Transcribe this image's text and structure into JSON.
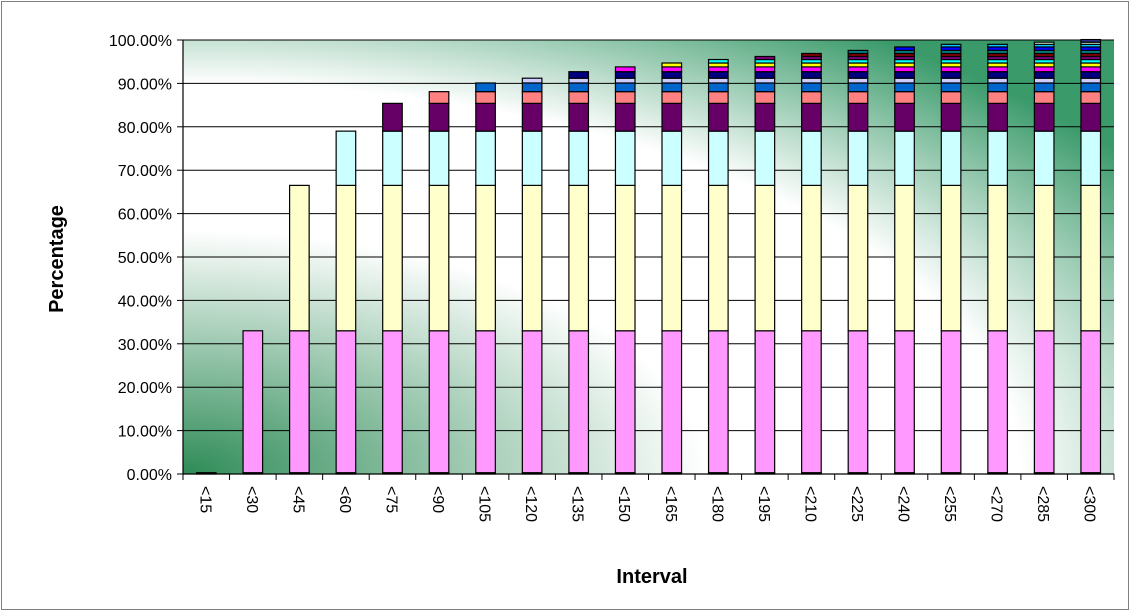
{
  "chart_data": {
    "type": "bar",
    "stacked": true,
    "title": "",
    "xlabel": "Interval",
    "ylabel": "Percentage",
    "ylim": [
      0,
      100
    ],
    "y_ticks": [
      "0.00%",
      "10.00%",
      "20.00%",
      "30.00%",
      "40.00%",
      "50.00%",
      "60.00%",
      "70.00%",
      "80.00%",
      "90.00%",
      "100.00%"
    ],
    "grid": "horizontal",
    "legend": "none",
    "categories": [
      "<15",
      "<30",
      "<45",
      "<60",
      "<75",
      "<90",
      "<105",
      "<120",
      "<135",
      "<150",
      "<165",
      "<180",
      "<195",
      "<210",
      "<225",
      "<240",
      "<255",
      "<270",
      "<285",
      "<300"
    ],
    "series": [
      {
        "color": "#1a1a1a",
        "values": [
          0.3,
          0.3,
          0.3,
          0.3,
          0.3,
          0.3,
          0.3,
          0.3,
          0.3,
          0.3,
          0.3,
          0.3,
          0.3,
          0.3,
          0.3,
          0.3,
          0.3,
          0.3,
          0.3,
          0.3
        ]
      },
      {
        "color": "#ff99ff",
        "values": [
          0,
          32.7,
          32.7,
          32.7,
          32.7,
          32.7,
          32.7,
          32.7,
          32.7,
          32.7,
          32.7,
          32.7,
          32.7,
          32.7,
          32.7,
          32.7,
          32.7,
          32.7,
          32.7,
          32.7
        ]
      },
      {
        "color": "#ffffcc",
        "values": [
          0,
          0,
          33.5,
          33.5,
          33.5,
          33.5,
          33.5,
          33.5,
          33.5,
          33.5,
          33.5,
          33.5,
          33.5,
          33.5,
          33.5,
          33.5,
          33.5,
          33.5,
          33.5,
          33.5
        ]
      },
      {
        "color": "#ccffff",
        "values": [
          0,
          0,
          0,
          12.5,
          12.5,
          12.5,
          12.5,
          12.5,
          12.5,
          12.5,
          12.5,
          12.5,
          12.5,
          12.5,
          12.5,
          12.5,
          12.5,
          12.5,
          12.5,
          12.5
        ]
      },
      {
        "color": "#660066",
        "values": [
          0,
          0,
          0,
          0,
          6.4,
          6.4,
          6.4,
          6.4,
          6.4,
          6.4,
          6.4,
          6.4,
          6.4,
          6.4,
          6.4,
          6.4,
          6.4,
          6.4,
          6.4,
          6.4
        ]
      },
      {
        "color": "#ff8080",
        "values": [
          0,
          0,
          0,
          0,
          0,
          2.7,
          2.7,
          2.7,
          2.7,
          2.7,
          2.7,
          2.7,
          2.7,
          2.7,
          2.7,
          2.7,
          2.7,
          2.7,
          2.7,
          2.7
        ]
      },
      {
        "color": "#0066cc",
        "values": [
          0,
          0,
          0,
          0,
          0,
          0,
          2.0,
          2.0,
          2.0,
          2.0,
          2.0,
          2.0,
          2.0,
          2.0,
          2.0,
          2.0,
          2.0,
          2.0,
          2.0,
          2.0
        ]
      },
      {
        "color": "#ccccff",
        "values": [
          0,
          0,
          0,
          0,
          0,
          0,
          0,
          1.1,
          1.1,
          1.1,
          1.1,
          1.1,
          1.1,
          1.1,
          1.1,
          1.1,
          1.1,
          1.1,
          1.1,
          1.1
        ]
      },
      {
        "color": "#000080",
        "values": [
          0,
          0,
          0,
          0,
          0,
          0,
          0,
          0,
          1.5,
          1.5,
          1.5,
          1.5,
          1.5,
          1.5,
          1.5,
          1.5,
          1.5,
          1.5,
          1.5,
          1.5
        ]
      },
      {
        "color": "#ff00ff",
        "values": [
          0,
          0,
          0,
          0,
          0,
          0,
          0,
          0,
          0,
          1.1,
          1.1,
          1.1,
          1.1,
          1.1,
          1.1,
          1.1,
          1.1,
          1.1,
          1.1,
          1.1
        ]
      },
      {
        "color": "#ffff00",
        "values": [
          0,
          0,
          0,
          0,
          0,
          0,
          0,
          0,
          0,
          0,
          0.9,
          0.9,
          0.9,
          0.9,
          0.9,
          0.9,
          0.9,
          0.9,
          0.9,
          0.9
        ]
      },
      {
        "color": "#00ffff",
        "values": [
          0,
          0,
          0,
          0,
          0,
          0,
          0,
          0,
          0,
          0,
          0,
          0.8,
          0.8,
          0.8,
          0.8,
          0.8,
          0.8,
          0.8,
          0.8,
          0.8
        ]
      },
      {
        "color": "#800080",
        "values": [
          0,
          0,
          0,
          0,
          0,
          0,
          0,
          0,
          0,
          0,
          0,
          0,
          0.7,
          0.7,
          0.7,
          0.7,
          0.7,
          0.7,
          0.7,
          0.7
        ]
      },
      {
        "color": "#800000",
        "values": [
          0,
          0,
          0,
          0,
          0,
          0,
          0,
          0,
          0,
          0,
          0,
          0,
          0,
          0.7,
          0.7,
          0.7,
          0.7,
          0.7,
          0.7,
          0.7
        ]
      },
      {
        "color": "#008080",
        "values": [
          0,
          0,
          0,
          0,
          0,
          0,
          0,
          0,
          0,
          0,
          0,
          0,
          0,
          0,
          0.7,
          0.7,
          0.7,
          0.7,
          0.7,
          0.7
        ]
      },
      {
        "color": "#0000ff",
        "values": [
          0,
          0,
          0,
          0,
          0,
          0,
          0,
          0,
          0,
          0,
          0,
          0,
          0,
          0,
          0,
          0.8,
          0.8,
          0.8,
          0.8,
          0.8
        ]
      },
      {
        "color": "#00ccff",
        "values": [
          0,
          0,
          0,
          0,
          0,
          0,
          0,
          0,
          0,
          0,
          0,
          0,
          0,
          0,
          0,
          0,
          0.6,
          0.6,
          0.6,
          0.6
        ]
      },
      {
        "color": "#ccffcc",
        "values": [
          0,
          0,
          0,
          0,
          0,
          0,
          0,
          0,
          0,
          0,
          0,
          0,
          0,
          0,
          0,
          0,
          0,
          0,
          0.5,
          0.5
        ]
      },
      {
        "color": "#333399",
        "values": [
          0,
          0,
          0,
          0,
          0,
          0,
          0,
          0,
          0,
          0,
          0,
          0,
          0,
          0,
          0,
          0,
          0,
          0,
          0,
          0.6
        ]
      }
    ]
  }
}
